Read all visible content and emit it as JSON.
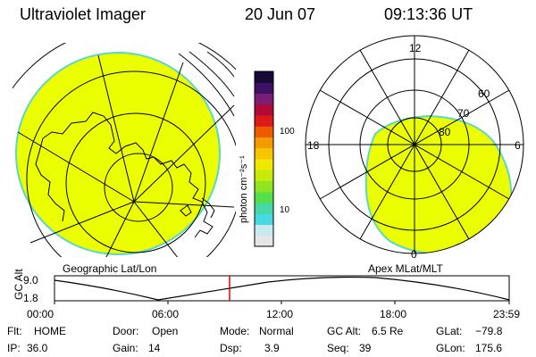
{
  "header": {
    "instrument": "Ultraviolet Imager",
    "date": "20 Jun 07",
    "time": "09:13:36 UT"
  },
  "colors": {
    "image_fill": "#ecff00",
    "image_edge": "#5ad7c8",
    "grid_line": "#000000",
    "time_marker": "#e00000"
  },
  "colorbar": {
    "unit_label": "photon cm⁻²s⁻¹",
    "ticks": [
      "100",
      "10"
    ],
    "scale": "log",
    "colors": [
      "#e6e6e6",
      "#c7e9ef",
      "#4ad9e2",
      "#46d8a6",
      "#55e04a",
      "#8fe41f",
      "#c6ea09",
      "#efe800",
      "#f7c400",
      "#f59a00",
      "#ee5a00",
      "#dc1a1a",
      "#b20a36",
      "#7a1f72",
      "#3d1266",
      "#160a36"
    ]
  },
  "left_panel": {
    "caption": "Geographic Lat/Lon"
  },
  "right_panel": {
    "caption": "Apex MLat/MLT",
    "mlt_labels": {
      "top": "12",
      "left": "18",
      "right": "6",
      "bottom": "0"
    },
    "lat_labels": [
      "60",
      "70",
      "80"
    ]
  },
  "timeline": {
    "ylabel": "GC Alt",
    "y_ticks": [
      "9.0",
      "1.8"
    ],
    "x_ticks": [
      "00:00",
      "06:00",
      "12:00",
      "18:00",
      "23:59"
    ],
    "marker_time": "09:13:36"
  },
  "info": {
    "flt_label": "Flt:",
    "flt_value": "HOME",
    "ip_label": "IP:",
    "ip_value": "36.0",
    "door_label": "Door:",
    "door_value": "Open",
    "gain_label": "Gain:",
    "gain_value": "14",
    "mode_label": "Mode:",
    "mode_value": "Normal",
    "dsp_label": "Dsp:",
    "dsp_value": "3.9",
    "gcalt_label": "GC Alt:",
    "gcalt_value": "6.5 Re",
    "seq_label": "Seq:",
    "seq_value": "39",
    "glat_label": "GLat:",
    "glat_value": "−79.8",
    "glon_label": "GLon:",
    "glon_value": "175.6"
  }
}
